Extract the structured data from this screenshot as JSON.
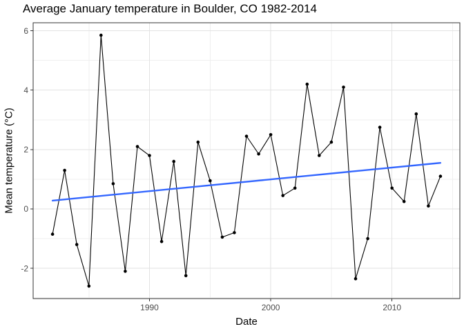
{
  "chart_data": {
    "type": "line",
    "title": "Average January temperature in Boulder, CO 1982-2014",
    "xlabel": "Date",
    "ylabel": "Mean temperature (°C)",
    "x": [
      1982,
      1983,
      1984,
      1985,
      1986,
      1987,
      1988,
      1989,
      1990,
      1991,
      1992,
      1993,
      1994,
      1995,
      1996,
      1997,
      1998,
      1999,
      2000,
      2001,
      2002,
      2003,
      2004,
      2005,
      2006,
      2007,
      2008,
      2009,
      2010,
      2011,
      2012,
      2013,
      2014
    ],
    "values": [
      -0.85,
      1.3,
      -1.2,
      -2.6,
      5.85,
      0.85,
      -2.1,
      2.1,
      1.8,
      -1.1,
      1.6,
      -2.25,
      2.25,
      0.95,
      -0.95,
      -0.8,
      2.45,
      1.85,
      2.5,
      0.45,
      0.7,
      4.2,
      1.8,
      2.25,
      4.1,
      -2.35,
      -1.0,
      2.75,
      0.7,
      0.25,
      3.2,
      0.1,
      1.1
    ],
    "trend_line": {
      "x": [
        1982,
        2014
      ],
      "y": [
        0.28,
        1.55
      ]
    },
    "x_ticks": [
      1990,
      2000,
      2010
    ],
    "x_minor_ticks": [
      1985,
      1995,
      2005,
      2015
    ],
    "y_ticks": [
      6,
      4,
      2,
      0,
      -2
    ],
    "y_minor_ticks": [
      5,
      3,
      1,
      -1,
      -3
    ],
    "xlim": [
      1980.4,
      2015.6
    ],
    "ylim": [
      -3.02,
      6.27
    ],
    "grid": true,
    "legend_position": "none",
    "colors": {
      "series": "#000000",
      "trend": "#3366FF",
      "grid_major": "#e2e2e2",
      "grid_minor": "#efefef",
      "panel_border": "#333333",
      "axis_text": "#4d4d4d",
      "title_text": "#000000",
      "background": "#ffffff"
    }
  }
}
